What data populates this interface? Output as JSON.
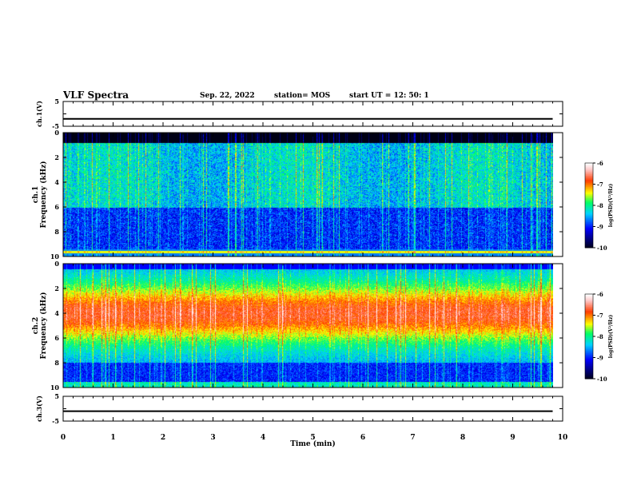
{
  "header": {
    "title": "VLF Spectra",
    "date": "Sep. 22, 2022",
    "station": "station= MOS",
    "start": "start  UT  =   12: 50: 1"
  },
  "chart_data": [
    {
      "type": "line",
      "panel": "ch1-waveform",
      "ylabel": "ch.1(V)",
      "ylim": [
        -5,
        5
      ],
      "yticks": [
        "5",
        "0",
        "-5"
      ],
      "xlim": [
        0,
        10
      ],
      "series": [
        {
          "x_range": [
            0,
            9.8
          ],
          "y": -2,
          "color": "#000000"
        }
      ]
    },
    {
      "type": "heatmap",
      "panel": "ch1-spectrogram",
      "ylabel": "ch.1 Frequency (kHz)",
      "ylim": [
        0,
        10
      ],
      "yticks": [
        "0",
        "2",
        "4",
        "6",
        "8",
        "10"
      ],
      "xlim": [
        0,
        10
      ],
      "data_end_min": 9.8,
      "colorbar": {
        "label": "log(PSD)(V²/Hz)",
        "range": [
          -10,
          -6
        ],
        "ticks": [
          "-6",
          "-7",
          "-8",
          "-9",
          "-10"
        ]
      }
    },
    {
      "type": "heatmap",
      "panel": "ch2-spectrogram",
      "ylabel": "ch.2 Frequency (kHz)",
      "ylim": [
        0,
        10
      ],
      "yticks": [
        "0",
        "2",
        "4",
        "6",
        "8",
        "10"
      ],
      "xlim": [
        0,
        10
      ],
      "data_end_min": 9.8,
      "colorbar": {
        "label": "log(PSD)(V²/Hz)",
        "range": [
          -10,
          -6
        ],
        "ticks": [
          "-6",
          "-7",
          "-8",
          "-9",
          "-10"
        ]
      }
    },
    {
      "type": "line",
      "panel": "ch3-waveform",
      "ylabel": "ch.3(V)",
      "ylim": [
        -5,
        5
      ],
      "yticks": [
        "5",
        "0",
        "-5"
      ],
      "xlim": [
        0,
        10
      ],
      "series": [
        {
          "x_range": [
            0,
            9.8
          ],
          "y": -1,
          "color": "#000000"
        }
      ]
    }
  ],
  "xaxis": {
    "label": "Time  (min)",
    "ticks": [
      "0",
      "1",
      "2",
      "3",
      "4",
      "5",
      "6",
      "7",
      "8",
      "9",
      "10"
    ]
  }
}
